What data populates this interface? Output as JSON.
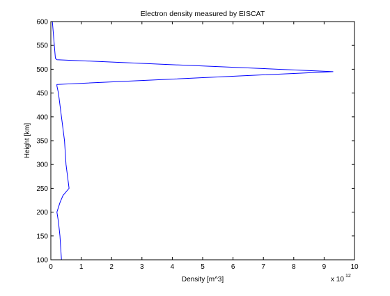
{
  "chart_data": {
    "type": "line",
    "title": "Electron density measured by EISCAT",
    "xlabel": "Density [m^3]",
    "ylabel": "Height [km]",
    "x_multiplier_label": "x 10",
    "x_multiplier_exponent": "12",
    "xlim": [
      0,
      10
    ],
    "ylim": [
      100,
      600
    ],
    "x_ticks": [
      0,
      1,
      2,
      3,
      4,
      5,
      6,
      7,
      8,
      9,
      10
    ],
    "y_ticks": [
      100,
      150,
      200,
      250,
      300,
      350,
      400,
      450,
      500,
      550,
      600
    ],
    "grid": false,
    "line_color": "#0000ff",
    "series": [
      {
        "x": [
          0.35,
          0.3,
          0.25,
          0.2,
          0.3,
          0.4,
          0.6,
          0.5,
          0.45,
          0.35,
          0.25,
          0.2,
          0.2,
          9.3,
          0.2,
          0.15,
          0.05
        ],
        "y": [
          100,
          150,
          180,
          200,
          220,
          235,
          250,
          300,
          350,
          400,
          450,
          465,
          468,
          495,
          520,
          523,
          600
        ]
      }
    ]
  }
}
